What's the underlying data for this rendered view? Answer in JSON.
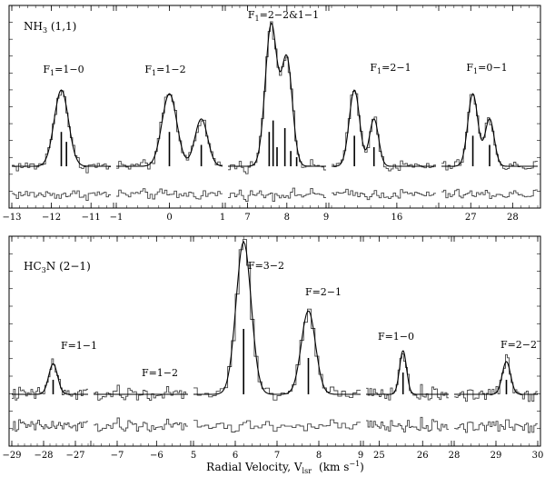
{
  "figure": {
    "xlabel_main": "Radial Velocity, V",
    "xlabel_sub": "lsr",
    "xlabel_unit": "(km s",
    "xlabel_exp": "−1",
    "xlabel_close": ")"
  },
  "chart_data": [
    {
      "type": "line",
      "panel": "top",
      "molecule_label": {
        "main": "NH",
        "sub": "3",
        "rest": " (1,1)"
      },
      "segments": [
        {
          "group_label": {
            "pre": "F",
            "sub": "1",
            "post": "=1−0"
          },
          "xlim": [
            -13,
            -10.5
          ],
          "xticks": [
            -13,
            -12,
            -11
          ],
          "ticklabels": [
            "−13",
            "−12",
            "−11"
          ],
          "peaks": [
            {
              "center": -11.75,
              "amplitude": 1.0,
              "width": 0.18
            }
          ],
          "components": [
            {
              "x": -11.75,
              "h": 0.45
            },
            {
              "x": -11.62,
              "h": 0.32
            }
          ]
        },
        {
          "group_label": {
            "pre": "F",
            "sub": "1",
            "post": "=1−2"
          },
          "xlim": [
            -1,
            1
          ],
          "xticks": [
            -1,
            0,
            1
          ],
          "ticklabels": [
            "−1",
            "0",
            "1"
          ],
          "peaks": [
            {
              "center": 0.0,
              "amplitude": 0.95,
              "width": 0.14
            },
            {
              "center": 0.6,
              "amplitude": 0.62,
              "width": 0.12
            }
          ],
          "components": [
            {
              "x": 0.0,
              "h": 0.45
            },
            {
              "x": 0.6,
              "h": 0.28
            }
          ]
        },
        {
          "group_label": {
            "pre": "F",
            "sub": "1",
            "post": "=2−2&1−1"
          },
          "xlim": [
            6.5,
            9
          ],
          "xticks": [
            7,
            8,
            9
          ],
          "ticklabels": [
            "7",
            "8",
            "9"
          ],
          "peaks": [
            {
              "center": 7.6,
              "amplitude": 1.85,
              "width": 0.15
            },
            {
              "center": 8.0,
              "amplitude": 1.4,
              "width": 0.14
            }
          ],
          "components": [
            {
              "x": 7.55,
              "h": 0.45
            },
            {
              "x": 7.65,
              "h": 0.6
            },
            {
              "x": 7.75,
              "h": 0.25
            },
            {
              "x": 7.95,
              "h": 0.5
            },
            {
              "x": 8.1,
              "h": 0.2
            },
            {
              "x": 8.25,
              "h": 0.12
            }
          ]
        },
        {
          "group_label": {
            "pre": "F",
            "sub": "1",
            "post": "=2−1"
          },
          "xlim": [
            15,
            16.6
          ],
          "xticks": [
            16
          ],
          "ticklabels": [
            "16"
          ],
          "peaks": [
            {
              "center": 15.35,
              "amplitude": 1.0,
              "width": 0.08
            },
            {
              "center": 15.65,
              "amplitude": 0.62,
              "width": 0.07
            }
          ],
          "components": [
            {
              "x": 15.35,
              "h": 0.4
            },
            {
              "x": 15.65,
              "h": 0.25
            }
          ]
        },
        {
          "group_label": {
            "pre": "F",
            "sub": "1",
            "post": "=0−1"
          },
          "xlim": [
            26.3,
            28.6
          ],
          "xticks": [
            27,
            28
          ],
          "ticklabels": [
            "27",
            "28"
          ],
          "peaks": [
            {
              "center": 27.05,
              "amplitude": 0.95,
              "width": 0.12
            },
            {
              "center": 27.45,
              "amplitude": 0.62,
              "width": 0.11
            }
          ],
          "components": [
            {
              "x": 27.05,
              "h": 0.4
            },
            {
              "x": 27.45,
              "h": 0.28
            }
          ]
        }
      ]
    },
    {
      "type": "line",
      "panel": "bottom",
      "molecule_label": {
        "main": "HC",
        "sub": "3",
        "rest": "N (2−1)"
      },
      "segments": [
        {
          "group_label": {
            "pre": "F=1−1",
            "sub": "",
            "post": ""
          },
          "xlim": [
            -29,
            -26.6
          ],
          "xticks": [
            -29,
            -28,
            -27
          ],
          "ticklabels": [
            "−29",
            "−28",
            "−27"
          ],
          "peaks": [
            {
              "center": -27.7,
              "amplitude": 0.42,
              "width": 0.14
            }
          ],
          "components": [
            {
              "x": -27.7,
              "h": 0.2
            }
          ]
        },
        {
          "group_label": {
            "pre": "F=1−2",
            "sub": "",
            "post": ""
          },
          "xlim": [
            -7.6,
            -5.2
          ],
          "xticks": [
            -7,
            -6
          ],
          "ticklabels": [
            "−7",
            "−6"
          ],
          "peaks": [],
          "components": []
        },
        {
          "group_label": {
            "pre": "F=3−2",
            "sub": "",
            "post": ""
          },
          "xlim": [
            5,
            9
          ],
          "xticks": [
            5,
            6,
            7,
            8,
            9
          ],
          "ticklabels": [
            "5",
            "6",
            "7",
            "8",
            "9"
          ],
          "peaks": [
            {
              "center": 6.2,
              "amplitude": 2.1,
              "width": 0.18
            },
            {
              "center": 7.75,
              "amplitude": 1.15,
              "width": 0.17
            }
          ],
          "components": [
            {
              "x": 6.2,
              "h": 0.9
            },
            {
              "x": 7.75,
              "h": 0.5
            }
          ],
          "extra_label": {
            "pre": "F=2−1",
            "sub": "",
            "post": ""
          }
        },
        {
          "group_label": {
            "pre": "F=1−0",
            "sub": "",
            "post": ""
          },
          "xlim": [
            24.7,
            26.6
          ],
          "xticks": [
            25,
            26
          ],
          "ticklabels": [
            "25",
            "26"
          ],
          "peaks": [
            {
              "center": 25.55,
              "amplitude": 0.6,
              "width": 0.08
            }
          ],
          "components": [
            {
              "x": 25.55,
              "h": 0.3
            }
          ]
        },
        {
          "group_label": {
            "pre": "F=2−2",
            "sub": "",
            "post": ""
          },
          "xlim": [
            28,
            30
          ],
          "xticks": [
            28,
            29,
            30
          ],
          "ticklabels": [
            "28",
            "29",
            "30"
          ],
          "peaks": [
            {
              "center": 29.25,
              "amplitude": 0.45,
              "width": 0.1
            }
          ],
          "components": [
            {
              "x": 29.25,
              "h": 0.2
            }
          ]
        }
      ]
    }
  ]
}
